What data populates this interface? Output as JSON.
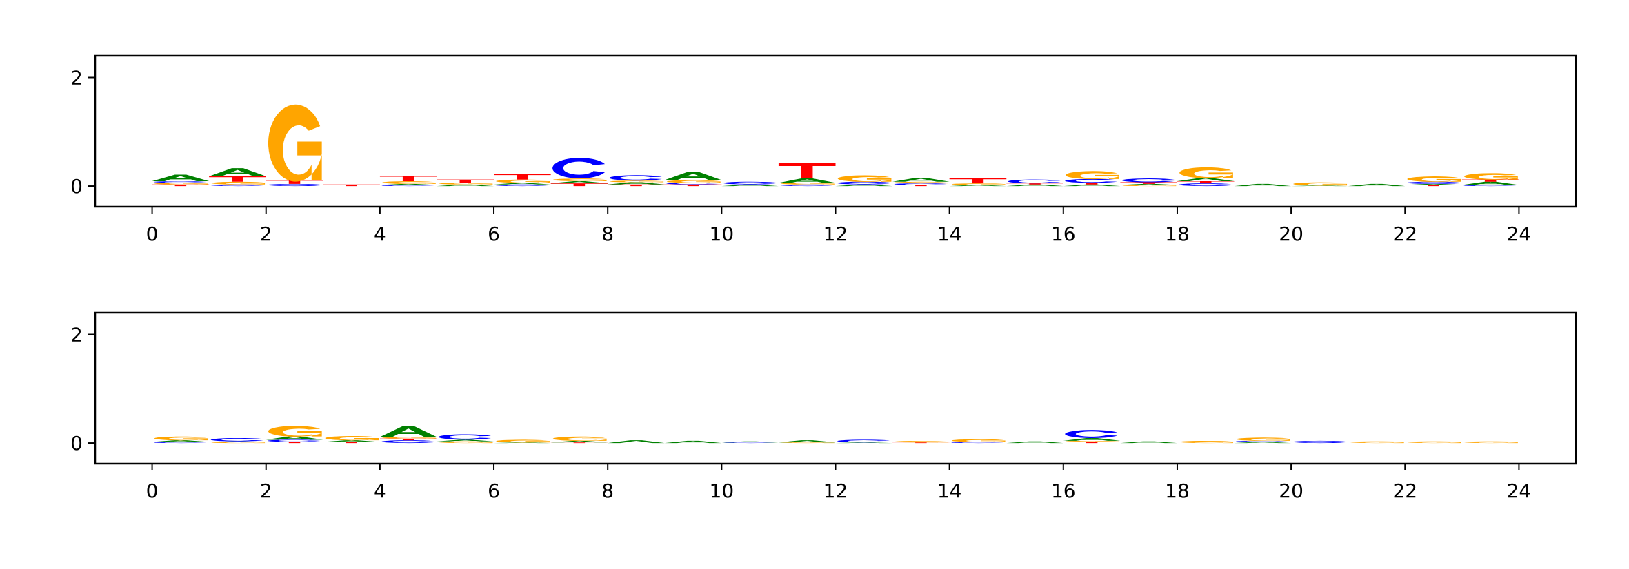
{
  "chart_data": [
    {
      "type": "sequence-logo",
      "xlim": [
        -1,
        25
      ],
      "ylim": [
        -0.38,
        2.4
      ],
      "x_ticks": [
        "0",
        "2",
        "4",
        "6",
        "8",
        "10",
        "12",
        "14",
        "16",
        "18",
        "20",
        "22",
        "24"
      ],
      "y_ticks": [
        "0",
        "2"
      ],
      "grid": false,
      "colors": {
        "A": "#008000",
        "C": "#0000ff",
        "G": "#ffa500",
        "T": "#ff0000"
      },
      "positions": [
        [
          [
            "T",
            0.03
          ],
          [
            "G",
            0.03
          ],
          [
            "C",
            0.03
          ],
          [
            "A",
            0.12
          ]
        ],
        [
          [
            "C",
            0.03
          ],
          [
            "G",
            0.05
          ],
          [
            "T",
            0.1
          ],
          [
            "A",
            0.15
          ]
        ],
        [
          [
            "C",
            0.04
          ],
          [
            "T",
            0.07
          ],
          [
            "G",
            1.42
          ]
        ],
        [
          [
            "T",
            0.03
          ]
        ],
        [
          [
            "C",
            0.02
          ],
          [
            "A",
            0.02
          ],
          [
            "G",
            0.05
          ],
          [
            "T",
            0.1
          ]
        ],
        [
          [
            "A",
            0.03
          ],
          [
            "G",
            0.03
          ],
          [
            "T",
            0.06
          ]
        ],
        [
          [
            "C",
            0.03
          ],
          [
            "A",
            0.03
          ],
          [
            "G",
            0.06
          ],
          [
            "T",
            0.1
          ]
        ],
        [
          [
            "T",
            0.05
          ],
          [
            "A",
            0.04
          ],
          [
            "G",
            0.05
          ],
          [
            "C",
            0.38
          ]
        ],
        [
          [
            "T",
            0.03
          ],
          [
            "A",
            0.04
          ],
          [
            "G",
            0.03
          ],
          [
            "C",
            0.1
          ]
        ],
        [
          [
            "T",
            0.03
          ],
          [
            "C",
            0.03
          ],
          [
            "G",
            0.05
          ],
          [
            "A",
            0.15
          ]
        ],
        [
          [
            "A",
            0.03
          ],
          [
            "C",
            0.05
          ]
        ],
        [
          [
            "C",
            0.03
          ],
          [
            "G",
            0.03
          ],
          [
            "A",
            0.08
          ],
          [
            "T",
            0.28
          ]
        ],
        [
          [
            "A",
            0.03
          ],
          [
            "C",
            0.05
          ],
          [
            "G",
            0.12
          ]
        ],
        [
          [
            "T",
            0.02
          ],
          [
            "C",
            0.03
          ],
          [
            "G",
            0.03
          ],
          [
            "A",
            0.07
          ]
        ],
        [
          [
            "A",
            0.02
          ],
          [
            "G",
            0.03
          ],
          [
            "T",
            0.09
          ]
        ],
        [
          [
            "A",
            0.03
          ],
          [
            "T",
            0.02
          ],
          [
            "C",
            0.07
          ]
        ],
        [
          [
            "A",
            0.03
          ],
          [
            "T",
            0.03
          ],
          [
            "C",
            0.07
          ],
          [
            "G",
            0.15
          ]
        ],
        [
          [
            "G",
            0.02
          ],
          [
            "A",
            0.02
          ],
          [
            "T",
            0.03
          ],
          [
            "C",
            0.07
          ]
        ],
        [
          [
            "C",
            0.05
          ],
          [
            "T",
            0.04
          ],
          [
            "A",
            0.06
          ],
          [
            "G",
            0.2
          ]
        ],
        [
          [
            "A",
            0.04
          ]
        ],
        [
          [
            "A",
            0.01
          ],
          [
            "G",
            0.06
          ]
        ],
        [
          [
            "A",
            0.04
          ]
        ],
        [
          [
            "T",
            0.02
          ],
          [
            "A",
            0.02
          ],
          [
            "C",
            0.04
          ],
          [
            "G",
            0.1
          ]
        ],
        [
          [
            "C",
            0.02
          ],
          [
            "A",
            0.06
          ],
          [
            "T",
            0.04
          ],
          [
            "G",
            0.12
          ]
        ]
      ]
    },
    {
      "type": "sequence-logo",
      "xlim": [
        -1,
        25
      ],
      "ylim": [
        -0.38,
        2.4
      ],
      "x_ticks": [
        "0",
        "2",
        "4",
        "6",
        "8",
        "10",
        "12",
        "14",
        "16",
        "18",
        "20",
        "22",
        "24"
      ],
      "y_ticks": [
        "0",
        "2"
      ],
      "grid": false,
      "colors": {
        "A": "#008000",
        "C": "#0000ff",
        "G": "#ffa500",
        "T": "#ff0000"
      },
      "positions": [
        [
          [
            "C",
            0.02
          ],
          [
            "A",
            0.03
          ],
          [
            "G",
            0.07
          ]
        ],
        [
          [
            "G",
            0.02
          ],
          [
            "A",
            0.01
          ],
          [
            "C",
            0.06
          ]
        ],
        [
          [
            "T",
            0.02
          ],
          [
            "C",
            0.04
          ],
          [
            "A",
            0.06
          ],
          [
            "G",
            0.2
          ]
        ],
        [
          [
            "T",
            0.02
          ],
          [
            "A",
            0.03
          ],
          [
            "G",
            0.08
          ]
        ],
        [
          [
            "C",
            0.05
          ],
          [
            "T",
            0.03
          ],
          [
            "G",
            0.03
          ],
          [
            "A",
            0.2
          ]
        ],
        [
          [
            "G",
            0.03
          ],
          [
            "A",
            0.03
          ],
          [
            "C",
            0.1
          ]
        ],
        [
          [
            "A",
            0.01
          ],
          [
            "G",
            0.05
          ]
        ],
        [
          [
            "T",
            0.01
          ],
          [
            "A",
            0.03
          ],
          [
            "G",
            0.08
          ]
        ],
        [
          [
            "A",
            0.05
          ]
        ],
        [
          [
            "A",
            0.04
          ]
        ],
        [
          [
            "C",
            0.01
          ],
          [
            "A",
            0.02
          ]
        ],
        [
          [
            "G",
            0.01
          ],
          [
            "A",
            0.04
          ]
        ],
        [
          [
            "A",
            0.01
          ],
          [
            "C",
            0.05
          ]
        ],
        [
          [
            "T",
            0.01
          ],
          [
            "G",
            0.03
          ]
        ],
        [
          [
            "C",
            0.02
          ],
          [
            "G",
            0.05
          ]
        ],
        [
          [
            "A",
            0.03
          ]
        ],
        [
          [
            "T",
            0.02
          ],
          [
            "G",
            0.02
          ],
          [
            "A",
            0.05
          ],
          [
            "C",
            0.15
          ]
        ],
        [
          [
            "A",
            0.03
          ]
        ],
        [
          [
            "G",
            0.04
          ]
        ],
        [
          [
            "A",
            0.02
          ],
          [
            "C",
            0.02
          ],
          [
            "G",
            0.06
          ]
        ],
        [
          [
            "C",
            0.04
          ]
        ],
        [
          [
            "G",
            0.03
          ]
        ],
        [
          [
            "G",
            0.03
          ]
        ],
        [
          [
            "G",
            0.03
          ]
        ]
      ]
    }
  ]
}
